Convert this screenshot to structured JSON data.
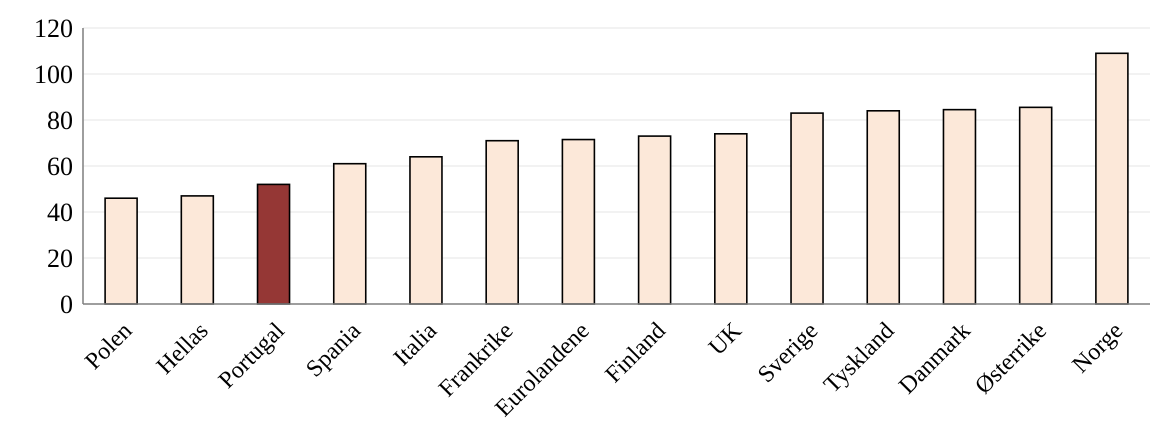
{
  "chart_data": {
    "type": "bar",
    "title": "",
    "xlabel": "",
    "ylabel": "",
    "ylim": [
      0,
      120
    ],
    "yticks": [
      0,
      20,
      40,
      60,
      80,
      100,
      120
    ],
    "grid": true,
    "legend": "none",
    "categories": [
      "Polen",
      "Hellas",
      "Portugal",
      "Spania",
      "Italia",
      "Frankrike",
      "Eurolandene",
      "Finland",
      "UK",
      "Sverige",
      "Tyskland",
      "Danmark",
      "Østerrike",
      "Norge"
    ],
    "values": [
      46,
      47,
      52,
      61,
      64,
      71,
      71.5,
      73,
      74,
      83,
      84,
      84.5,
      85.5,
      109
    ],
    "colors": {
      "default_bar": "#fce8d9",
      "highlight_bar": "#953735",
      "bar_outline": "#000000",
      "axis": "#7f7f7f",
      "grid": "#e6e6e6"
    },
    "highlight_category": "Portugal"
  }
}
